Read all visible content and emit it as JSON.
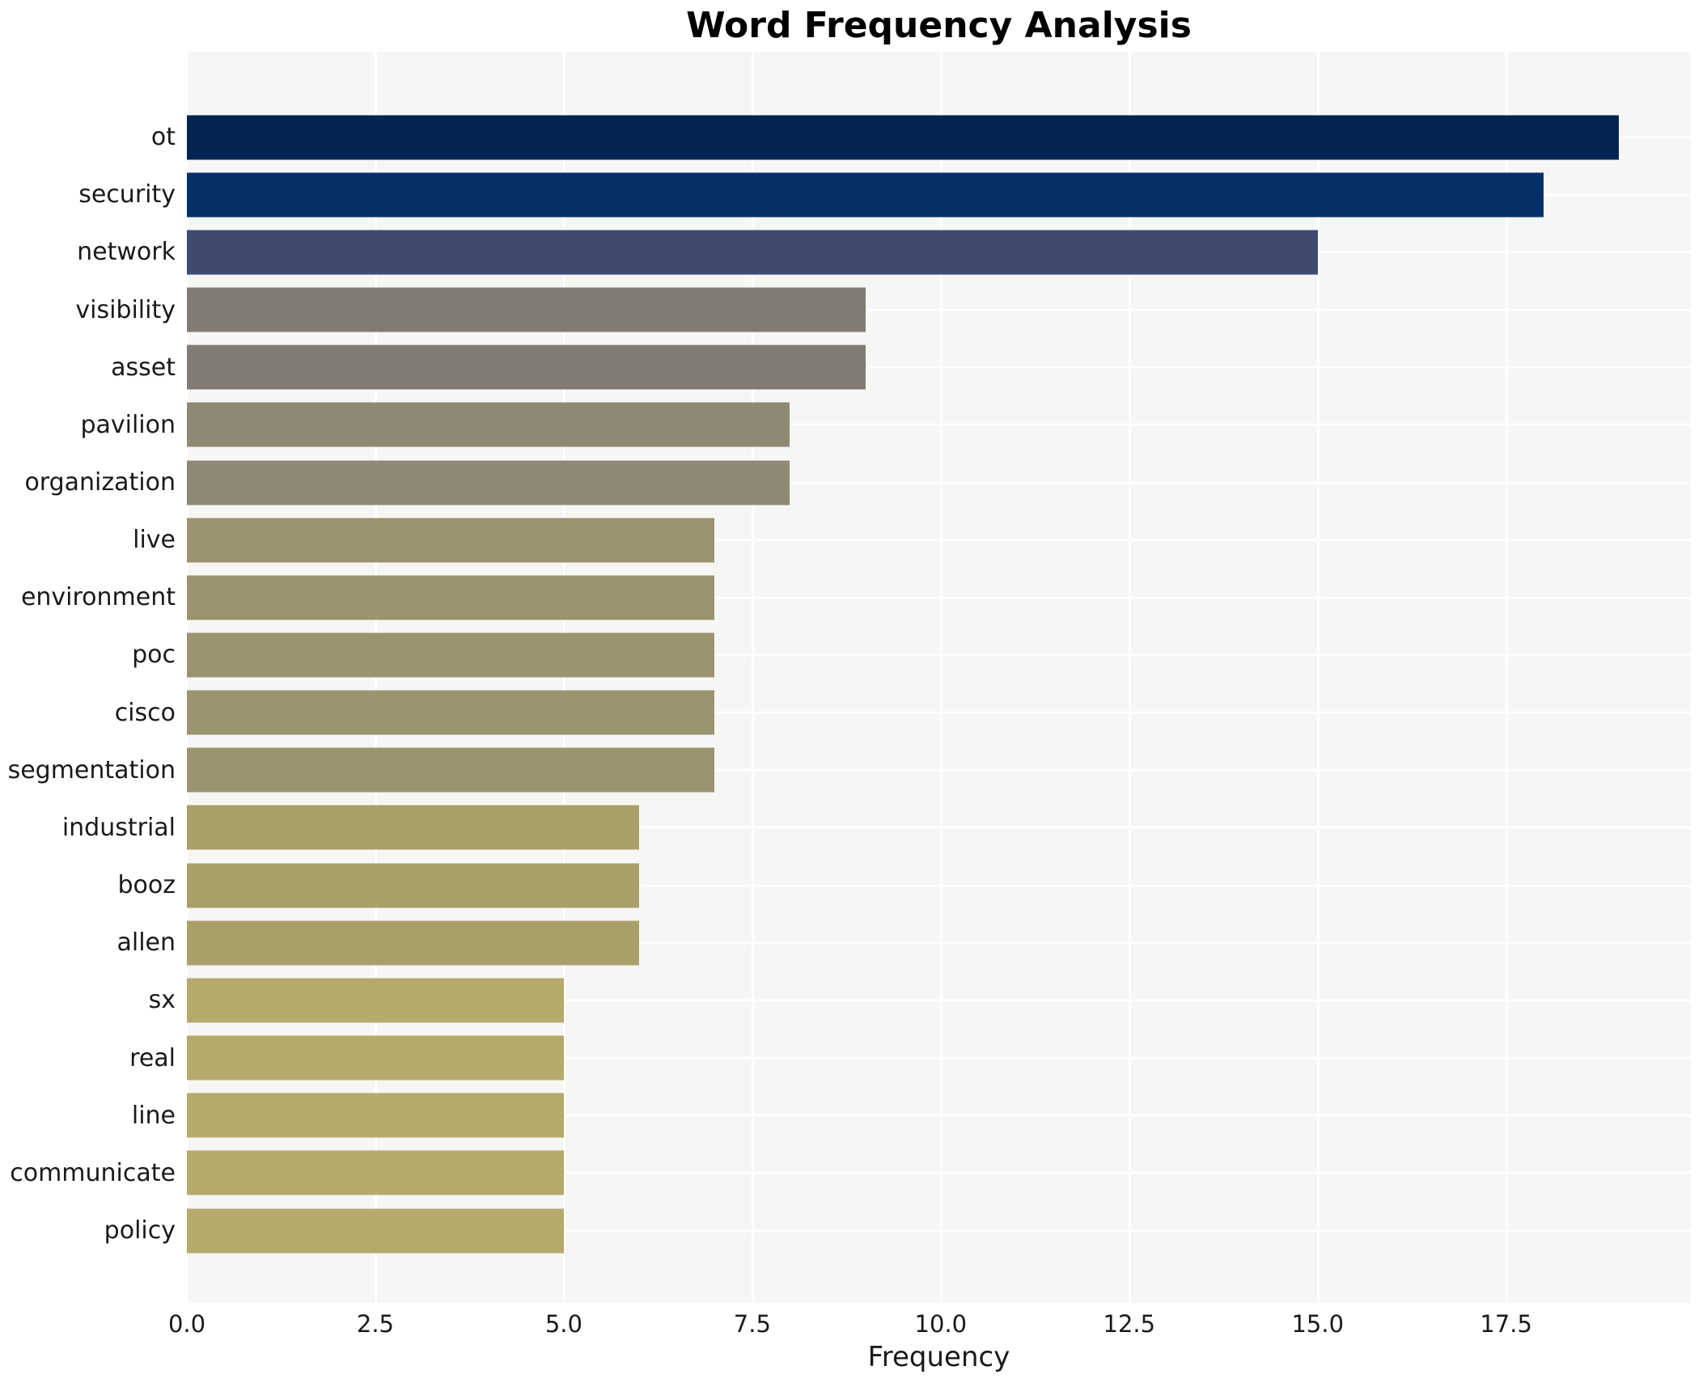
{
  "chart_data": {
    "type": "bar",
    "orientation": "horizontal",
    "title": "Word Frequency Analysis",
    "xlabel": "Frequency",
    "ylabel": "",
    "categories": [
      "ot",
      "security",
      "network",
      "visibility",
      "asset",
      "pavilion",
      "organization",
      "live",
      "environment",
      "poc",
      "cisco",
      "segmentation",
      "industrial",
      "booz",
      "allen",
      "sx",
      "real",
      "line",
      "communicate",
      "policy"
    ],
    "values": [
      19,
      18,
      15,
      9,
      9,
      8,
      8,
      7,
      7,
      7,
      7,
      7,
      6,
      6,
      6,
      5,
      5,
      5,
      5,
      5
    ],
    "bar_colors": [
      "#032450",
      "#053067",
      "#3e4b6f",
      "#807c74",
      "#807c74",
      "#8e8975",
      "#8e8975",
      "#9b9470",
      "#9b9470",
      "#9b9470",
      "#9b9470",
      "#9b9470",
      "#a9a069",
      "#a9a069",
      "#a9a069",
      "#b5aa6c",
      "#b5aa6c",
      "#b5aa6c",
      "#b5aa6c",
      "#b5aa6c"
    ],
    "xlim": [
      0,
      19.95
    ],
    "xticks": [
      0,
      2.5,
      5,
      7.5,
      10,
      12.5,
      15,
      17.5
    ],
    "xtick_labels": [
      "0.0",
      "2.5",
      "5.0",
      "7.5",
      "10.0",
      "12.5",
      "15.0",
      "17.5"
    ],
    "grid": "white gridlines, vertical at xticks and horizontal at category centers",
    "legend": "none",
    "plot_background": "#f6f6f5",
    "gridline_color": "#ffffff",
    "text_color": "#1a1a1a",
    "title_color": "#000000"
  }
}
